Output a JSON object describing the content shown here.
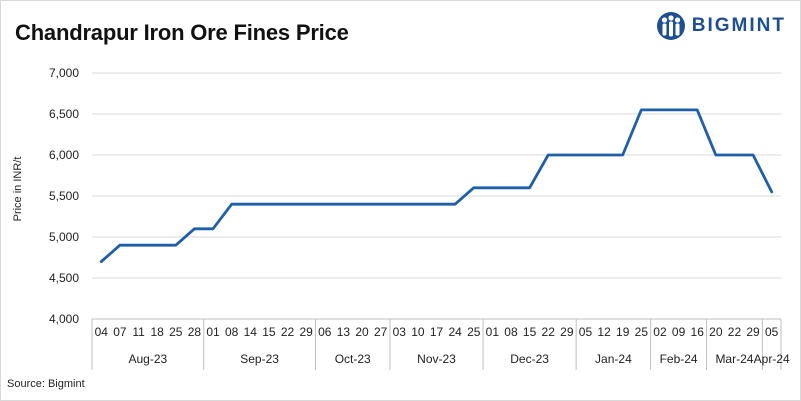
{
  "header": {
    "title": "Chandrapur Iron Ore Fines Price",
    "brand": "BIGMINT"
  },
  "footer": {
    "source": "Source: Bigmint"
  },
  "chart_data": {
    "type": "line",
    "title": "Chandrapur Iron Ore Fines Price",
    "ylabel": "Price in INR/t",
    "xlabel": "",
    "ylim": [
      4000,
      7000
    ],
    "ytick_step": 500,
    "grid": "horizontal",
    "line_color": "#1f5fa8",
    "x": [
      "04",
      "07",
      "11",
      "18",
      "25",
      "28",
      "01",
      "08",
      "14",
      "15",
      "22",
      "29",
      "06",
      "13",
      "20",
      "27",
      "03",
      "10",
      "17",
      "24",
      "25",
      "01",
      "08",
      "15",
      "22",
      "29",
      "05",
      "12",
      "19",
      "25",
      "02",
      "09",
      "16",
      "20",
      "22",
      "29",
      "05"
    ],
    "months": [
      {
        "label": "Aug-23",
        "start": 0,
        "end": 5
      },
      {
        "label": "Sep-23",
        "start": 6,
        "end": 11
      },
      {
        "label": "Oct-23",
        "start": 12,
        "end": 15
      },
      {
        "label": "Nov-23",
        "start": 16,
        "end": 20
      },
      {
        "label": "Dec-23",
        "start": 21,
        "end": 25
      },
      {
        "label": "Jan-24",
        "start": 26,
        "end": 29
      },
      {
        "label": "Feb-24",
        "start": 30,
        "end": 32
      },
      {
        "label": "Mar-24",
        "start": 33,
        "end": 35
      },
      {
        "label": "Apr-24",
        "start": 36,
        "end": 36
      }
    ],
    "series": [
      {
        "values": [
          4700,
          4900,
          4900,
          4900,
          4900,
          5100,
          5100,
          5400,
          5400,
          5400,
          5400,
          5400,
          5400,
          5400,
          5400,
          5400,
          5400,
          5400,
          5400,
          5400,
          5600,
          5600,
          5600,
          5600,
          6000,
          6000,
          6000,
          6000,
          6000,
          6550,
          6550,
          6550,
          6550,
          6000,
          6000,
          6000,
          5550
        ]
      }
    ]
  }
}
